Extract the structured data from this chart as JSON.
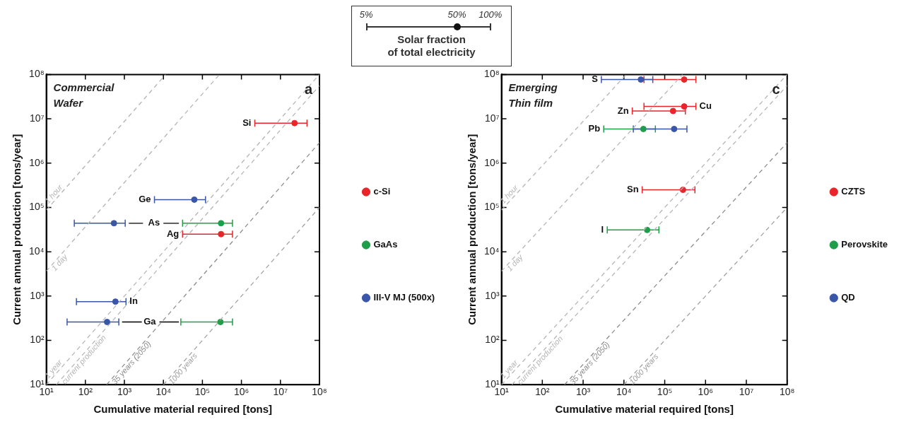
{
  "chart_data": [
    {
      "type": "other",
      "title": "Solar fraction\nof total electricity",
      "annotations": [
        "5%",
        "50%",
        "100%"
      ]
    },
    {
      "type": "scatter",
      "log": "xy",
      "grid": false,
      "legend": "right",
      "marker": "circle",
      "xlabel": "Cumulative material required [tons]",
      "ylabel": "Current annual production [tons/year]",
      "xlim": [
        10,
        100000000
      ],
      "ylim": [
        10,
        100000000
      ],
      "xticks": [
        {
          "value": 10,
          "label": "10¹"
        },
        {
          "value": 100,
          "label": "10²"
        },
        {
          "value": 1000,
          "label": "10³"
        },
        {
          "value": 10000,
          "label": "10⁴"
        },
        {
          "value": 100000,
          "label": "10⁵"
        },
        {
          "value": 1000000,
          "label": "10⁶"
        },
        {
          "value": 10000000,
          "label": "10⁷"
        },
        {
          "value": 100000000,
          "label": "10⁸"
        }
      ],
      "yticks": [
        {
          "value": 10,
          "label": "10¹"
        },
        {
          "value": 100,
          "label": "10²"
        },
        {
          "value": 1000,
          "label": "10³"
        },
        {
          "value": 10000,
          "label": "10⁴"
        },
        {
          "value": 100000,
          "label": "10⁵"
        },
        {
          "value": 1000000,
          "label": "10⁶"
        },
        {
          "value": 10000000,
          "label": "10⁷"
        },
        {
          "value": 100000000,
          "label": "10⁸"
        }
      ],
      "series": [
        {
          "name": "1 hour",
          "type": "line",
          "marker": "none",
          "line_style": "dashed",
          "color": "#b5b5b5",
          "x": [
            10,
            11416
          ],
          "values": [
            87600,
            100000000
          ]
        },
        {
          "name": "1 day",
          "type": "line",
          "marker": "none",
          "line_style": "dashed",
          "color": "#b5b5b5",
          "x": [
            10,
            273973
          ],
          "values": [
            3650,
            100000000
          ]
        },
        {
          "name": "1 year",
          "type": "line",
          "marker": "none",
          "line_style": "dashed",
          "color": "#b5b5b5",
          "x": [
            10,
            100000000
          ],
          "values": [
            10,
            100000000
          ]
        },
        {
          "name": "current production",
          "type": "line",
          "marker": "none",
          "line_style": "dashed",
          "color": "#b5b5b5",
          "x": [
            18,
            100000000
          ],
          "values": [
            10,
            56000000
          ]
        },
        {
          "name": "35 years (2050)",
          "type": "line",
          "marker": "none",
          "line_style": "dashed",
          "color": "#8c8c8c",
          "x": [
            350,
            100000000
          ],
          "values": [
            10,
            2900000
          ]
        },
        {
          "name": "1000 years",
          "type": "line",
          "marker": "none",
          "line_style": "dashed",
          "color": "#a0a0a0",
          "x": [
            10000,
            100000000
          ],
          "values": [
            10,
            100000
          ]
        },
        {
          "type": "line",
          "marker": "none",
          "line_style": "solid",
          "color": "#000000",
          "x": [
            1300,
            3000,
            4000,
            10000,
            25000
          ],
          "values": [
            44000,
            44000,
            null,
            44000,
            44000
          ]
        },
        {
          "type": "line",
          "marker": "none",
          "line_style": "solid",
          "color": "#000000",
          "x": [
            870,
            2800,
            4500,
            7900,
            25000
          ],
          "values": [
            260,
            260,
            null,
            260,
            260
          ]
        },
        {
          "name": "c-Si",
          "type": "scatter",
          "color": "#e8262a",
          "x": [
            23000000,
            300000
          ],
          "values": [
            8000000,
            25000
          ],
          "xerrors": [
            [
              2200000,
              48000000
            ],
            [
              31000,
              590000
            ]
          ]
        },
        {
          "name": "GaAs",
          "type": "scatter",
          "color": "#1f9e4a",
          "x": [
            300000,
            290000
          ],
          "values": [
            44000,
            260
          ],
          "xerrors": [
            [
              31000,
              590000
            ],
            [
              28000,
              590000
            ]
          ]
        },
        {
          "name": "III-V MJ (500x)",
          "type": "scatter",
          "color": "#3a56a8",
          "x": [
            62000,
            540,
            590,
            360
          ],
          "values": [
            150000,
            44000,
            750,
            260
          ],
          "xerrors": [
            [
              5900,
              120000
            ],
            [
              52,
              1050
            ],
            [
              59,
              1100
            ],
            [
              34,
              720
            ]
          ]
        }
      ],
      "annotations": [
        "Commercial\nWafer",
        "a",
        {
          "text": "Si",
          "x": 2200000,
          "y": 8000000
        },
        {
          "text": "Ge",
          "x": 5900,
          "y": 150000
        },
        {
          "text": "As",
          "x": 10000,
          "y": 44000
        },
        {
          "text": "Ag",
          "x": 31000,
          "y": 25000
        },
        {
          "text": "In",
          "x": 1100,
          "y": 750
        },
        {
          "text": "Ga",
          "x": 7900,
          "y": 260
        }
      ]
    },
    {
      "type": "scatter",
      "log": "xy",
      "grid": false,
      "legend": "right",
      "marker": "circle",
      "xlabel": "Cumulative material required [tons]",
      "ylabel": "Current annual production [tons/year]",
      "xlim": [
        10,
        100000000
      ],
      "ylim": [
        10,
        100000000
      ],
      "xticks": [
        {
          "value": 10,
          "label": "10¹"
        },
        {
          "value": 100,
          "label": "10²"
        },
        {
          "value": 1000,
          "label": "10³"
        },
        {
          "value": 10000,
          "label": "10⁴"
        },
        {
          "value": 100000,
          "label": "10⁵"
        },
        {
          "value": 1000000,
          "label": "10⁶"
        },
        {
          "value": 10000000,
          "label": "10⁷"
        },
        {
          "value": 100000000,
          "label": "10⁸"
        }
      ],
      "yticks": [
        {
          "value": 10,
          "label": "10¹"
        },
        {
          "value": 100,
          "label": "10²"
        },
        {
          "value": 1000,
          "label": "10³"
        },
        {
          "value": 10000,
          "label": "10⁴"
        },
        {
          "value": 100000,
          "label": "10⁵"
        },
        {
          "value": 1000000,
          "label": "10⁶"
        },
        {
          "value": 10000000,
          "label": "10⁷"
        },
        {
          "value": 100000000,
          "label": "10⁸"
        }
      ],
      "series": [
        {
          "name": "1 hour",
          "type": "line",
          "marker": "none",
          "line_style": "dashed",
          "color": "#b5b5b5",
          "x": [
            10,
            11416
          ],
          "values": [
            87600,
            100000000
          ]
        },
        {
          "name": "1 day",
          "type": "line",
          "marker": "none",
          "line_style": "dashed",
          "color": "#b5b5b5",
          "x": [
            10,
            273973
          ],
          "values": [
            3650,
            100000000
          ]
        },
        {
          "name": "1 year",
          "type": "line",
          "marker": "none",
          "line_style": "dashed",
          "color": "#b5b5b5",
          "x": [
            10,
            100000000
          ],
          "values": [
            10,
            100000000
          ]
        },
        {
          "name": "current production",
          "type": "line",
          "marker": "none",
          "line_style": "dashed",
          "color": "#b5b5b5",
          "x": [
            18,
            100000000
          ],
          "values": [
            10,
            56000000
          ]
        },
        {
          "name": "35 years (2050)",
          "type": "line",
          "marker": "none",
          "line_style": "dashed",
          "color": "#8c8c8c",
          "x": [
            350,
            100000000
          ],
          "values": [
            10,
            2900000
          ]
        },
        {
          "name": "1000 years",
          "type": "line",
          "marker": "none",
          "line_style": "dashed",
          "color": "#a0a0a0",
          "x": [
            10000,
            100000000
          ],
          "values": [
            10,
            100000
          ]
        },
        {
          "name": "CZTS",
          "type": "scatter",
          "color": "#e8262a",
          "x": [
            300000,
            300000,
            160000,
            280000
          ],
          "values": [
            77000000,
            19000000,
            15000000,
            250000
          ],
          "xerrors": [
            [
              31000,
              580000
            ],
            [
              31000,
              580000
            ],
            [
              16000,
              320000
            ],
            [
              28000,
              550000
            ]
          ]
        },
        {
          "name": "Perovskite",
          "type": "scatter",
          "color": "#1f9e4a",
          "x": [
            30000,
            37000
          ],
          "values": [
            5900000,
            31000
          ],
          "xerrors": [
            [
              3200,
              59000
            ],
            [
              3900,
              72000
            ]
          ]
        },
        {
          "name": "QD",
          "type": "scatter",
          "color": "#3a56a8",
          "x": [
            26000,
            170000
          ],
          "values": [
            77000000,
            5900000
          ],
          "xerrors": [
            [
              2800,
              51000
            ],
            [
              17000,
              350000
            ]
          ]
        }
      ],
      "annotations": [
        "Emerging\nThin film",
        "c",
        {
          "text": "S",
          "x": 2800,
          "y": 77000000
        },
        {
          "text": "Cu",
          "x": 580000,
          "y": 19000000
        },
        {
          "text": "Zn",
          "x": 16000,
          "y": 15000000
        },
        {
          "text": "Pb",
          "x": 3200,
          "y": 5900000
        },
        {
          "text": "Sn",
          "x": 28000,
          "y": 250000
        },
        {
          "text": "I",
          "x": 3900,
          "y": 31000
        }
      ]
    }
  ]
}
